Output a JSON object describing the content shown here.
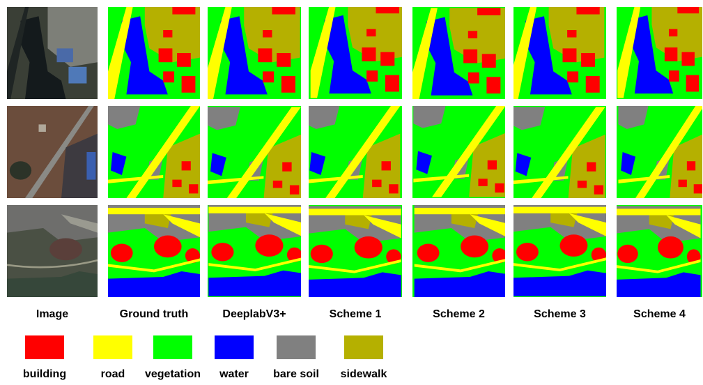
{
  "columns": [
    "Image",
    "Ground truth",
    "DeeplabV3+",
    "Scheme 1",
    "Scheme 2",
    "Scheme 3",
    "Scheme 4"
  ],
  "legend": [
    {
      "label": "building",
      "color": "#ff0000"
    },
    {
      "label": "road",
      "color": "#ffff00"
    },
    {
      "label": "vegetation",
      "color": "#00ff00"
    },
    {
      "label": "water",
      "color": "#0000ff"
    },
    {
      "label": "bare soil",
      "color": "#808080"
    },
    {
      "label": "sidewalk",
      "color": "#b5b000"
    }
  ]
}
